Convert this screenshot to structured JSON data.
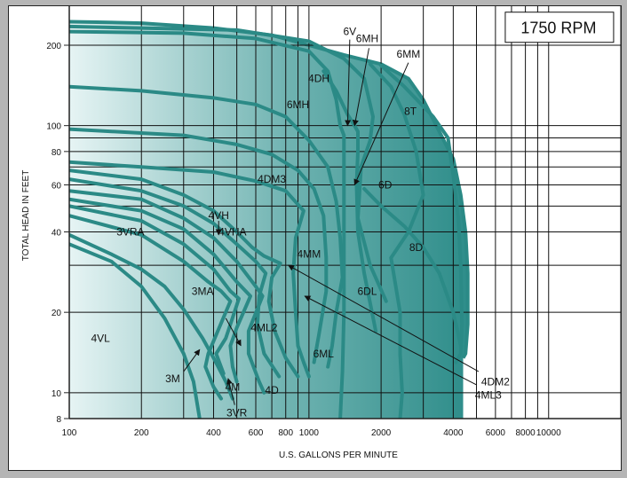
{
  "chart_data": {
    "type": "area",
    "title": "1750 RPM",
    "xlabel": "U.S. GALLONS PER MINUTE",
    "ylabel": "TOTAL HEAD IN FEET",
    "xscale": "log",
    "yscale": "log",
    "xlim": [
      100,
      20000
    ],
    "ylim": [
      8,
      280
    ],
    "x_ticks": [
      {
        "v": 100,
        "t": "100"
      },
      {
        "v": 200,
        "t": "200"
      },
      {
        "v": 400,
        "t": "400"
      },
      {
        "v": 600,
        "t": "600"
      },
      {
        "v": 800,
        "t": "800"
      },
      {
        "v": 1000,
        "t": "1000"
      },
      {
        "v": 2000,
        "t": "2000"
      },
      {
        "v": 4000,
        "t": "4000"
      },
      {
        "v": 6000,
        "t": "6000"
      },
      {
        "v": 8000,
        "t": "8000"
      },
      {
        "v": 10000,
        "t": "10000"
      }
    ],
    "x_gridlines": [
      300,
      500,
      700,
      900,
      3000,
      5000,
      7000,
      9000,
      20000
    ],
    "y_ticks": [
      {
        "v": 8,
        "t": "8"
      },
      {
        "v": 10,
        "t": "10"
      },
      {
        "v": 20,
        "t": "20"
      },
      {
        "v": 40,
        "t": "40"
      },
      {
        "v": 60,
        "t": "60"
      },
      {
        "v": 80,
        "t": "80"
      },
      {
        "v": 100,
        "t": "100"
      },
      {
        "v": 200,
        "t": "200"
      }
    ],
    "y_gridlines": [
      30,
      50,
      70,
      90,
      300
    ],
    "grid": true,
    "colors": {
      "fill_light": "#e6f4f4",
      "fill_dark": "#2e8d8a",
      "curve": "#2b8a86",
      "grid": "#111111",
      "axis": "#222222"
    },
    "envelope": [
      [
        100,
        245
      ],
      [
        130,
        244
      ],
      [
        200,
        242
      ],
      [
        400,
        232
      ],
      [
        700,
        218
      ],
      [
        1000,
        200
      ],
      [
        1400,
        184
      ],
      [
        2000,
        170
      ],
      [
        2600,
        150
      ],
      [
        3000,
        125
      ],
      [
        3500,
        95
      ],
      [
        4000,
        75
      ],
      [
        4300,
        55
      ],
      [
        4500,
        40
      ],
      [
        4600,
        28
      ],
      [
        4600,
        18
      ],
      [
        4500,
        14
      ],
      [
        4400,
        13.5
      ]
    ],
    "curves": [
      {
        "name": "4VL",
        "points": [
          [
            100,
            36
          ],
          [
            150,
            31
          ],
          [
            200,
            25
          ],
          [
            250,
            19
          ],
          [
            300,
            14
          ],
          [
            330,
            11
          ],
          [
            350,
            8
          ]
        ]
      },
      {
        "name": "3M",
        "points": [
          [
            100,
            39
          ],
          [
            150,
            33
          ],
          [
            200,
            29
          ],
          [
            250,
            25
          ],
          [
            300,
            20.5
          ],
          [
            360,
            16
          ],
          [
            400,
            13.5
          ],
          [
            450,
            11
          ],
          [
            480,
            9.5
          ]
        ]
      },
      {
        "name": "3VRA",
        "points": [
          [
            100,
            46
          ],
          [
            200,
            39
          ],
          [
            300,
            31
          ],
          [
            380,
            26
          ],
          [
            430,
            24
          ],
          [
            470,
            22
          ],
          [
            380,
            14
          ],
          [
            370,
            12.5
          ],
          [
            400,
            10.5
          ],
          [
            430,
            9.5
          ]
        ]
      },
      {
        "name": "3MA",
        "points": [
          [
            100,
            50
          ],
          [
            200,
            44
          ],
          [
            300,
            36
          ],
          [
            400,
            29
          ],
          [
            470,
            24
          ],
          [
            510,
            22.5
          ],
          [
            450,
            16
          ],
          [
            410,
            14
          ],
          [
            440,
            11.8
          ]
        ]
      },
      {
        "name": "3VR",
        "points": [
          [
            100,
            53
          ],
          [
            200,
            48
          ],
          [
            300,
            41
          ],
          [
            400,
            33
          ],
          [
            500,
            26
          ],
          [
            570,
            23
          ],
          [
            500,
            17.5
          ],
          [
            470,
            15
          ],
          [
            480,
            12.5
          ],
          [
            500,
            11
          ]
        ]
      },
      {
        "name": "4VH",
        "points": [
          [
            100,
            57
          ],
          [
            200,
            53
          ],
          [
            300,
            45
          ],
          [
            400,
            38
          ],
          [
            500,
            31
          ],
          [
            600,
            25
          ],
          [
            640,
            23
          ],
          [
            560,
            17
          ],
          [
            560,
            14
          ],
          [
            620,
            11
          ],
          [
            650,
            10
          ]
        ]
      },
      {
        "name": "4VHA",
        "points": [
          [
            100,
            63
          ],
          [
            200,
            57
          ],
          [
            300,
            50
          ],
          [
            400,
            43
          ],
          [
            500,
            36
          ],
          [
            600,
            31
          ],
          [
            660,
            28
          ],
          [
            620,
            23
          ],
          [
            610,
            18
          ],
          [
            650,
            14
          ],
          [
            750,
            11.5
          ]
        ]
      },
      {
        "name": "4ML2",
        "points": [
          [
            100,
            68
          ],
          [
            200,
            63
          ],
          [
            300,
            55
          ],
          [
            400,
            48
          ],
          [
            500,
            40
          ],
          [
            580,
            35
          ],
          [
            650,
            32.5
          ],
          [
            760,
            30.5
          ],
          [
            700,
            27
          ],
          [
            680,
            22
          ],
          [
            720,
            17
          ],
          [
            800,
            13.5
          ],
          [
            900,
            11.5
          ]
        ]
      },
      {
        "name": "4DM3",
        "points": [
          [
            100,
            73
          ],
          [
            200,
            70
          ],
          [
            400,
            67
          ],
          [
            600,
            62
          ],
          [
            800,
            57
          ],
          [
            950,
            48
          ],
          [
            880,
            38
          ],
          [
            860,
            28
          ],
          [
            880,
            20
          ],
          [
            900,
            15
          ],
          [
            950,
            13
          ],
          [
            1000,
            11.5
          ]
        ]
      },
      {
        "name": "6MH",
        "points": [
          [
            100,
            140
          ],
          [
            200,
            135
          ],
          [
            400,
            127
          ],
          [
            600,
            120
          ],
          [
            800,
            108
          ],
          [
            1000,
            88
          ],
          [
            1200,
            70
          ],
          [
            1300,
            52
          ],
          [
            1350,
            38
          ],
          [
            1380,
            27
          ],
          [
            1300,
            20
          ],
          [
            1250,
            15
          ],
          [
            1200,
            12.5
          ]
        ]
      },
      {
        "name": "4DH",
        "points": [
          [
            100,
            97
          ],
          [
            300,
            92
          ],
          [
            500,
            85
          ],
          [
            700,
            78
          ],
          [
            900,
            68
          ],
          [
            1050,
            58
          ],
          [
            1150,
            46
          ],
          [
            1180,
            32
          ],
          [
            1180,
            24
          ],
          [
            1100,
            16.5
          ],
          [
            1050,
            13
          ]
        ]
      },
      {
        "name": "4MM",
        "points": [
          [
            100,
            225
          ],
          [
            300,
            222
          ],
          [
            600,
            212
          ],
          [
            1000,
            190
          ],
          [
            1200,
            160
          ],
          [
            1300,
            125
          ],
          [
            1350,
            100
          ],
          [
            1400,
            92
          ],
          [
            1400,
            80
          ],
          [
            1400,
            55
          ],
          [
            1400,
            35
          ],
          [
            1400,
            20
          ],
          [
            1380,
            12
          ],
          [
            1350,
            8
          ]
        ]
      },
      {
        "name": "6V",
        "points": [
          [
            1150,
            160
          ],
          [
            1300,
            135
          ],
          [
            1450,
            110
          ],
          [
            1550,
            100
          ],
          [
            1600,
            95
          ],
          [
            1600,
            80
          ],
          [
            1580,
            60
          ],
          [
            1600,
            40
          ],
          [
            1700,
            28
          ],
          [
            1900,
            17
          ]
        ]
      },
      {
        "name": "6D",
        "points": [
          [
            100,
            235
          ],
          [
            500,
            228
          ],
          [
            1000,
            207
          ],
          [
            1400,
            178
          ],
          [
            1700,
            150
          ],
          [
            1850,
            108
          ],
          [
            1800,
            88
          ],
          [
            1650,
            70
          ],
          [
            1600,
            45
          ],
          [
            1800,
            30
          ],
          [
            2100,
            22
          ]
        ]
      },
      {
        "name": "8D",
        "points": [
          [
            1800,
            170
          ],
          [
            2200,
            140
          ],
          [
            2500,
            110
          ],
          [
            2800,
            80
          ],
          [
            3000,
            55
          ],
          [
            2600,
            40
          ],
          [
            2200,
            32
          ],
          [
            2400,
            20
          ],
          [
            2400,
            14
          ],
          [
            2450,
            10
          ],
          [
            2400,
            8
          ]
        ]
      },
      {
        "name": "8T",
        "points": [
          [
            2000,
            168
          ],
          [
            2500,
            140
          ],
          [
            3300,
            108
          ],
          [
            3800,
            90
          ],
          [
            4000,
            65
          ],
          [
            4200,
            45
          ],
          [
            4300,
            30
          ],
          [
            4350,
            18
          ],
          [
            4300,
            14
          ],
          [
            4100,
            13
          ]
        ]
      },
      {
        "name": "6DL",
        "points": [
          [
            1700,
            58
          ],
          [
            2000,
            50
          ],
          [
            2500,
            42
          ],
          [
            3000,
            35
          ],
          [
            3500,
            28
          ],
          [
            4000,
            20
          ],
          [
            4300,
            15
          ]
        ]
      }
    ],
    "labels": [
      {
        "text": "1750 RPM",
        "x": 11000,
        "y": 230
      },
      {
        "text": "6V",
        "x": 1480,
        "y": 225
      },
      {
        "text": "6MH",
        "x": 1750,
        "y": 212
      },
      {
        "text": "6MM",
        "x": 2600,
        "y": 185
      },
      {
        "text": "4DH",
        "x": 1100,
        "y": 150
      },
      {
        "text": "6MH",
        "x": 900,
        "y": 120
      },
      {
        "text": "8T",
        "x": 2650,
        "y": 113
      },
      {
        "text": "4DM3",
        "x": 700,
        "y": 63
      },
      {
        "text": "6D",
        "x": 2080,
        "y": 60
      },
      {
        "text": "4VH",
        "x": 420,
        "y": 46
      },
      {
        "text": "3VRA",
        "x": 180,
        "y": 40
      },
      {
        "text": "4VHA",
        "x": 480,
        "y": 40
      },
      {
        "text": "8D",
        "x": 2800,
        "y": 35
      },
      {
        "text": "4MM",
        "x": 1000,
        "y": 33
      },
      {
        "text": "3MA",
        "x": 360,
        "y": 24
      },
      {
        "text": "6DL",
        "x": 1750,
        "y": 24
      },
      {
        "text": "4ML2",
        "x": 650,
        "y": 17.5
      },
      {
        "text": "4VL",
        "x": 135,
        "y": 16
      },
      {
        "text": "6ML",
        "x": 1150,
        "y": 14
      },
      {
        "text": "3M",
        "x": 270,
        "y": 11.3
      },
      {
        "text": "4M",
        "x": 480,
        "y": 10.5
      },
      {
        "text": "4D",
        "x": 700,
        "y": 10.2
      },
      {
        "text": "4DM2",
        "x": 6000,
        "y": 11
      },
      {
        "text": "4ML3",
        "x": 5600,
        "y": 9.8
      },
      {
        "text": "3VR",
        "x": 500,
        "y": 8.4
      }
    ],
    "arrows": [
      {
        "from": [
          1480,
          210
        ],
        "to": [
          1450,
          100
        ]
      },
      {
        "from": [
          1780,
          195
        ],
        "to": [
          1550,
          100
        ]
      },
      {
        "from": [
          2600,
          172
        ],
        "to": [
          1550,
          60
        ]
      },
      {
        "from": [
          420,
          44
        ],
        "to": [
          420,
          39
        ]
      },
      {
        "from": [
          450,
          19
        ],
        "to": [
          520,
          15
        ]
      },
      {
        "from": [
          300,
          12
        ],
        "to": [
          350,
          14.5
        ]
      },
      {
        "from": [
          490,
          9
        ],
        "to": [
          460,
          11.3
        ]
      },
      {
        "from": [
          5100,
          12
        ],
        "to": [
          820,
          30
        ]
      },
      {
        "from": [
          5000,
          10.7
        ],
        "to": [
          960,
          23
        ]
      }
    ]
  }
}
